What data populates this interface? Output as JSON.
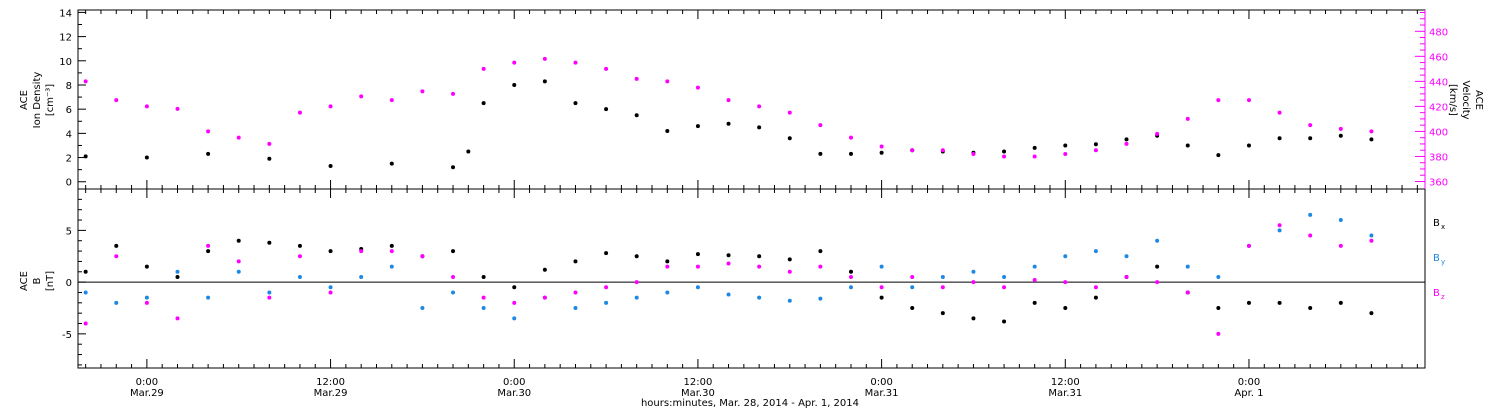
{
  "colors": {
    "black": "#000000",
    "magenta": "#ff00ff",
    "blue": "#1e88e5"
  },
  "chart_data": [
    {
      "type": "scatter",
      "panel": "top",
      "ylabel": [
        "ACE",
        "Ion Density",
        "[cm⁻³]"
      ],
      "ylim": [
        -0.6,
        14.2
      ],
      "yticks": [
        "0",
        "2",
        "4",
        "6",
        "8",
        "10",
        "12",
        "14"
      ],
      "yticks_vals": [
        0,
        2,
        4,
        6,
        8,
        10,
        12,
        14
      ],
      "y2label": [
        "ACE",
        "Velocity",
        "[km/s]"
      ],
      "y2lim": [
        354,
        497
      ],
      "y2ticks": [
        "360",
        "380",
        "400",
        "420",
        "440",
        "460",
        "480"
      ],
      "y2ticks_vals": [
        360,
        380,
        400,
        420,
        440,
        460,
        480
      ],
      "xlim_hours": [
        -4.5,
        83.5
      ],
      "series": [
        {
          "color": "black",
          "axis": "left",
          "x": [
            -4,
            0,
            4,
            8,
            12,
            16,
            20,
            21,
            22,
            24,
            26,
            28,
            30,
            32,
            34,
            36,
            38,
            40,
            42,
            44,
            46,
            48,
            50,
            52,
            54,
            56,
            58,
            60,
            62,
            64,
            66,
            68,
            70,
            72,
            74,
            76,
            78,
            80
          ],
          "y": [
            2.1,
            2.0,
            2.3,
            1.9,
            1.3,
            1.5,
            1.2,
            2.5,
            6.5,
            8.0,
            8.3,
            6.5,
            6.0,
            5.5,
            4.2,
            4.6,
            4.8,
            4.5,
            3.6,
            2.3,
            2.3,
            2.4,
            2.6,
            2.5,
            2.4,
            2.5,
            2.8,
            3.0,
            3.1,
            3.5,
            3.8,
            3.0,
            2.2,
            3.0,
            3.6,
            3.6,
            3.8,
            3.5
          ]
        },
        {
          "color": "magenta",
          "axis": "right",
          "x": [
            -4,
            -2,
            0,
            2,
            4,
            6,
            8,
            10,
            12,
            14,
            16,
            18,
            20,
            22,
            24,
            26,
            28,
            30,
            32,
            34,
            36,
            38,
            40,
            42,
            44,
            46,
            48,
            50,
            52,
            54,
            56,
            58,
            60,
            62,
            64,
            66,
            68,
            70,
            72,
            74,
            76,
            78,
            80
          ],
          "y": [
            440,
            425,
            420,
            418,
            400,
            395,
            390,
            415,
            420,
            428,
            425,
            432,
            430,
            450,
            455,
            458,
            455,
            450,
            442,
            440,
            435,
            425,
            420,
            415,
            405,
            395,
            388,
            385,
            385,
            382,
            380,
            380,
            382,
            385,
            390,
            398,
            410,
            425,
            425,
            415,
            405,
            402,
            400
          ]
        }
      ]
    },
    {
      "type": "scatter",
      "panel": "bottom",
      "ylabel": [
        "ACE",
        "B",
        "[nT]"
      ],
      "ylim": [
        -8.3,
        9.0
      ],
      "yticks": [
        "-5",
        "0",
        "5"
      ],
      "yticks_vals": [
        -5,
        0,
        5
      ],
      "xticks": [
        {
          "h": 0,
          "time": "0:00",
          "date": "Mar.29"
        },
        {
          "h": 12,
          "time": "12:00",
          "date": "Mar.29"
        },
        {
          "h": 24,
          "time": "0:00",
          "date": "Mar.30"
        },
        {
          "h": 36,
          "time": "12:00",
          "date": "Mar.30"
        },
        {
          "h": 48,
          "time": "0:00",
          "date": "Mar.31"
        },
        {
          "h": 60,
          "time": "12:00",
          "date": "Mar.31"
        },
        {
          "h": 72,
          "time": "0:00",
          "date": "Apr. 1"
        }
      ],
      "xlabel": "hours:minutes, Mar. 28, 2014 - Apr.  1, 2014",
      "legend": [
        {
          "label": "B",
          "sub": "x",
          "color": "black"
        },
        {
          "label": "B",
          "sub": "y",
          "color": "blue"
        },
        {
          "label": "B",
          "sub": "z",
          "color": "magenta"
        }
      ],
      "series": [
        {
          "name": "Bx",
          "color": "black",
          "x": [
            -4,
            -2,
            0,
            2,
            4,
            6,
            8,
            10,
            12,
            14,
            16,
            18,
            20,
            22,
            24,
            26,
            28,
            30,
            32,
            34,
            36,
            38,
            40,
            42,
            44,
            46,
            48,
            50,
            52,
            54,
            56,
            58,
            60,
            62,
            64,
            66,
            68,
            70,
            72,
            74,
            76,
            78,
            80
          ],
          "y": [
            1.0,
            3.5,
            1.5,
            0.5,
            3.0,
            4.0,
            3.8,
            3.5,
            3.0,
            3.2,
            3.5,
            2.5,
            3.0,
            0.5,
            -0.5,
            1.2,
            2.0,
            2.8,
            2.5,
            2.0,
            2.7,
            2.6,
            2.5,
            2.2,
            3.0,
            1.0,
            -1.5,
            -2.5,
            -3.0,
            -3.5,
            -3.8,
            -2.0,
            -2.5,
            -1.5,
            0.5,
            1.5,
            -1.0,
            -2.5,
            -2.0,
            -2.0,
            -2.5,
            -2.0,
            -3.0
          ]
        },
        {
          "name": "By",
          "color": "blue",
          "x": [
            -4,
            -2,
            0,
            2,
            4,
            6,
            8,
            10,
            12,
            14,
            16,
            18,
            20,
            22,
            24,
            26,
            28,
            30,
            32,
            34,
            36,
            38,
            40,
            42,
            44,
            46,
            48,
            50,
            52,
            54,
            56,
            58,
            60,
            62,
            64,
            66,
            68,
            70,
            72,
            74,
            76,
            78,
            80
          ],
          "y": [
            -1.0,
            -2.0,
            -1.5,
            1.0,
            -1.5,
            1.0,
            -1.0,
            0.5,
            -0.5,
            0.5,
            1.5,
            -2.5,
            -1.0,
            -2.5,
            -3.5,
            -1.5,
            -2.5,
            -2.0,
            -1.5,
            -1.0,
            -0.5,
            -1.2,
            -1.5,
            -1.8,
            -1.6,
            -0.5,
            1.5,
            -0.5,
            0.5,
            1.0,
            0.5,
            1.5,
            2.5,
            3.0,
            2.5,
            4.0,
            1.5,
            0.5,
            3.5,
            5.0,
            6.5,
            6.0,
            4.5
          ]
        },
        {
          "name": "Bz",
          "color": "magenta",
          "x": [
            -4,
            -2,
            0,
            2,
            4,
            6,
            8,
            10,
            12,
            14,
            16,
            18,
            20,
            22,
            24,
            26,
            28,
            30,
            32,
            34,
            36,
            38,
            40,
            42,
            44,
            46,
            48,
            50,
            52,
            54,
            56,
            58,
            60,
            62,
            64,
            66,
            68,
            70,
            72,
            74,
            76,
            78,
            80
          ],
          "y": [
            -4.0,
            2.5,
            -2.0,
            -3.5,
            3.5,
            2.0,
            -1.5,
            2.5,
            -1.0,
            3.0,
            3.0,
            2.5,
            0.5,
            -1.5,
            -2.0,
            -1.5,
            -1.0,
            -0.5,
            0.0,
            1.5,
            1.5,
            1.8,
            1.5,
            1.0,
            1.5,
            0.5,
            -0.5,
            0.5,
            -0.5,
            0.0,
            -0.5,
            0.2,
            0.0,
            -0.5,
            0.5,
            0.0,
            -1.0,
            -5.0,
            3.5,
            5.5,
            4.5,
            3.5,
            4.0
          ]
        }
      ]
    }
  ]
}
